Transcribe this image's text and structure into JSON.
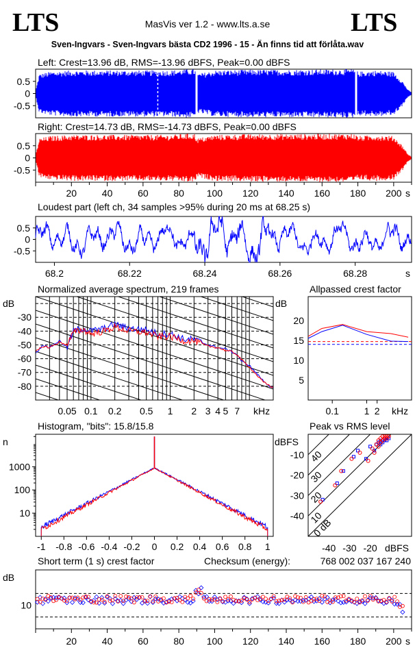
{
  "header": {
    "logo_left": "LTS",
    "logo_right": "LTS",
    "app": "MasVis ver 1.2 - www.lts.a.se",
    "file_title": "Sven-Ingvars - Sven-Ingvars bästa CD2 1996 - 15 - Än finns tid att förlåta.wav"
  },
  "colors": {
    "left": "#0000ff",
    "right": "#ff0000",
    "axis": "#000000"
  },
  "chart_data": [
    {
      "id": "left-waveform",
      "type": "area",
      "title": "Left: Crest=13.96 dB, RMS=-13.96 dBFS, Peak=0.00 dBFS",
      "yticks": [
        "0.5",
        "0",
        "-0.5"
      ],
      "ylim": [
        -1,
        1
      ],
      "xlim": [
        0,
        210
      ],
      "x_unit": "s",
      "markers": [
        {
          "x": 68.25,
          "label": ""
        }
      ],
      "gaps_s": [
        [
          89.5,
          90.5
        ],
        [
          178.5,
          179.5
        ]
      ],
      "envelope": {
        "x": [
          0,
          2,
          8,
          20,
          40,
          60,
          75,
          85,
          89,
          90,
          100,
          120,
          140,
          160,
          175,
          178,
          180,
          190,
          200,
          205,
          208,
          210
        ],
        "peak": [
          0.1,
          0.8,
          0.9,
          0.95,
          0.95,
          0.95,
          0.95,
          1.0,
          1.0,
          0.8,
          0.95,
          0.98,
          0.98,
          0.99,
          1.0,
          1.0,
          0.9,
          0.95,
          0.9,
          0.5,
          0.15,
          0.05
        ]
      }
    },
    {
      "id": "right-waveform",
      "type": "area",
      "title": "Right: Crest=14.73 dB, RMS=-14.73 dBFS, Peak=0.00 dBFS",
      "yticks": [
        "0.5",
        "0",
        "-0.5"
      ],
      "ylim": [
        -1,
        1
      ],
      "xlim": [
        0,
        210
      ],
      "xticks": [
        "20",
        "40",
        "60",
        "80",
        "100",
        "120",
        "140",
        "160",
        "180",
        "200"
      ],
      "x_unit": "s",
      "envelope": {
        "x": [
          0,
          2,
          8,
          20,
          40,
          60,
          75,
          85,
          89,
          90,
          100,
          120,
          140,
          160,
          175,
          178,
          180,
          190,
          200,
          205,
          208,
          210
        ],
        "peak": [
          0.1,
          0.8,
          0.9,
          0.95,
          0.95,
          0.95,
          0.95,
          1.0,
          1.0,
          0.8,
          0.95,
          0.98,
          0.98,
          0.99,
          1.0,
          1.0,
          0.9,
          0.95,
          0.9,
          0.5,
          0.15,
          0.05
        ]
      }
    },
    {
      "id": "loudest-part",
      "type": "line",
      "title": "Loudest part (left  ch, 34 samples >95% during 20 ms at 68.25 s)",
      "yticks": [
        "0.5",
        "0",
        "-0.5"
      ],
      "ylim": [
        -1,
        1
      ],
      "xlim": [
        68.195,
        68.295
      ],
      "xticks": [
        "68.2",
        "68.22",
        "68.24",
        "68.26",
        "68.28"
      ],
      "x_unit": "s",
      "series": [
        {
          "color": "#0000ff"
        }
      ]
    },
    {
      "id": "avg-spectrum",
      "type": "line",
      "title": "Normalized average spectrum, 219 frames",
      "ylabel": "dB",
      "yticks": [
        "-30",
        "-40",
        "-50",
        "-60",
        "-70",
        "-80"
      ],
      "ylim": [
        -90,
        -15
      ],
      "xlim": [
        0.02,
        20
      ],
      "xscale": "log",
      "xticks": [
        "0.05",
        "0.1",
        "0.2",
        "0.5",
        "1",
        "2",
        "3",
        "4",
        "5",
        "7"
      ],
      "x_unit": "kHz",
      "series": [
        {
          "color": "#0000ff",
          "x": [
            0.02,
            0.025,
            0.03,
            0.04,
            0.05,
            0.06,
            0.08,
            0.1,
            0.15,
            0.2,
            0.3,
            0.5,
            0.7,
            1,
            1.5,
            2,
            3,
            4,
            5,
            6,
            7,
            8,
            10,
            12,
            15,
            20
          ],
          "y": [
            -56,
            -50,
            -52,
            -47,
            -52,
            -40,
            -38,
            -40,
            -38,
            -35,
            -38,
            -39,
            -42,
            -42,
            -46,
            -46,
            -50,
            -52,
            -53,
            -55,
            -57,
            -62,
            -65,
            -70,
            -76,
            -82
          ]
        },
        {
          "color": "#ff0000",
          "x": [
            0.02,
            0.025,
            0.03,
            0.04,
            0.05,
            0.06,
            0.08,
            0.1,
            0.15,
            0.2,
            0.3,
            0.5,
            0.7,
            1,
            1.5,
            2,
            3,
            4,
            5,
            6,
            7,
            8,
            10,
            12,
            15,
            20
          ],
          "y": [
            -55,
            -51,
            -52,
            -48,
            -50,
            -41,
            -39,
            -42,
            -40,
            -37,
            -40,
            -41,
            -44,
            -44,
            -47,
            -47,
            -51,
            -52,
            -54,
            -55,
            -57,
            -61,
            -66,
            -71,
            -77,
            -81
          ]
        }
      ]
    },
    {
      "id": "allpassed-crest",
      "type": "line",
      "title": "Allpassed crest factor",
      "ylabel": "dB",
      "yticks": [
        "20",
        "15",
        "10",
        "5"
      ],
      "ylim": [
        0,
        26
      ],
      "xlim": [
        0.02,
        20
      ],
      "xscale": "log",
      "xticks": [
        "0.1",
        "1",
        "2"
      ],
      "x_unit": "kHz",
      "series": [
        {
          "color": "#0000ff",
          "x": [
            0.02,
            0.05,
            0.2,
            1,
            5,
            16
          ],
          "y": [
            15.5,
            17.2,
            18.8,
            16.5,
            14.8,
            14.7
          ]
        },
        {
          "color": "#ff0000",
          "x": [
            0.02,
            0.05,
            0.2,
            1,
            5,
            16
          ],
          "y": [
            16.0,
            18.0,
            19.0,
            17.2,
            16.7,
            15.8
          ]
        }
      ],
      "ref_lines": [
        {
          "color": "#0000ff",
          "y": 14.0
        },
        {
          "color": "#ff0000",
          "y": 14.7
        }
      ]
    },
    {
      "id": "histogram",
      "type": "line",
      "title": "Histogram, \"bits\": 15.8/15.8",
      "ylabel": "n",
      "yscale": "log",
      "yticks": [
        "1000",
        "100",
        "10"
      ],
      "ylim": [
        1,
        25000
      ],
      "xlim": [
        -1.05,
        1.05
      ],
      "xticks": [
        "-1",
        "-0.8",
        "-0.6",
        "-0.4",
        "-0.2",
        "0",
        "0.2",
        "0.4",
        "0.6",
        "0.8",
        "1"
      ],
      "series": [
        {
          "color": "#0000ff",
          "center_peak": 20000,
          "center_base": 900,
          "edge_value": 2.5
        },
        {
          "color": "#ff0000",
          "center_peak": 20000,
          "center_base": 880,
          "edge_value": 2.0
        }
      ]
    },
    {
      "id": "peak-vs-rms",
      "type": "scatter",
      "title": "Peak vs RMS level",
      "ylabel": "dBFS",
      "xlabel": "dBFS",
      "xlim": [
        -50,
        0
      ],
      "ylim": [
        -50,
        0
      ],
      "yticks": [
        "-10",
        "-20",
        "-30",
        "-40"
      ],
      "xticks": [
        "-40",
        "-30",
        "-20"
      ],
      "diag_labels": [
        "40",
        "30",
        "20",
        "10",
        "0 dB"
      ],
      "series": [
        {
          "color": "#0000ff",
          "x": [
            -43,
            -36,
            -33,
            -28,
            -26,
            -22,
            -20,
            -18,
            -17,
            -16,
            -15,
            -15,
            -14,
            -13,
            -13,
            -12,
            -12,
            -11
          ],
          "y": [
            -32,
            -24,
            -18,
            -11,
            -8,
            -12,
            -6,
            -8,
            -5,
            -4,
            -5,
            -3,
            -4,
            -3,
            -2,
            -3,
            -2,
            -2
          ]
        },
        {
          "color": "#ff0000",
          "x": [
            -44,
            -37,
            -34,
            -29,
            -25,
            -21,
            -19,
            -18,
            -17,
            -16,
            -16,
            -15,
            -15,
            -14,
            -14,
            -13,
            -13,
            -12,
            -12,
            -11
          ],
          "y": [
            -33,
            -25,
            -18,
            -12,
            -9,
            -13,
            -7,
            -9,
            -5,
            -6,
            -3,
            -4,
            -2,
            -3,
            -1,
            -2,
            -1,
            -2,
            -1,
            -1
          ]
        }
      ]
    },
    {
      "id": "short-term-crest",
      "type": "scatter",
      "title": "Short term (1 s) crest factor",
      "ylabel": "dB",
      "yticks": [
        "10"
      ],
      "ylim": [
        0,
        25
      ],
      "xlim": [
        0,
        210
      ],
      "xticks": [
        "20",
        "40",
        "60",
        "80",
        "100",
        "120",
        "140",
        "160",
        "180",
        "200"
      ],
      "x_unit": "s",
      "checksum_label": "Checksum (energy):",
      "checksum_value": "768 002 037 167 240",
      "ref_lines_db": [
        5,
        15
      ],
      "series": [
        {
          "color": "#0000ff",
          "mean": 12.2
        },
        {
          "color": "#ff0000",
          "mean": 12.6
        }
      ]
    }
  ]
}
